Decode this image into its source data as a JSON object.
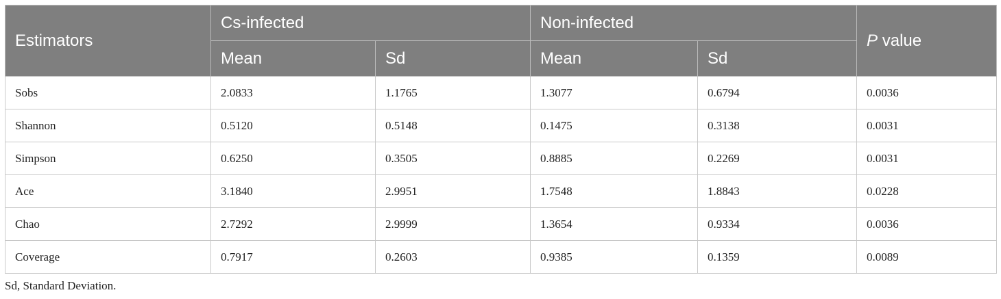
{
  "table": {
    "headers": {
      "estimators": "Estimators",
      "group1": "Cs-infected",
      "group2": "Non-infected",
      "p_italic": "P",
      "p_rest": " value",
      "mean": "Mean",
      "sd": "Sd"
    },
    "rows": [
      {
        "name": "Sobs",
        "cs_mean": "2.0833",
        "cs_sd": "1.1765",
        "non_mean": "1.3077",
        "non_sd": "0.6794",
        "p": "0.0036"
      },
      {
        "name": "Shannon",
        "cs_mean": "0.5120",
        "cs_sd": "0.5148",
        "non_mean": "0.1475",
        "non_sd": "0.3138",
        "p": "0.0031"
      },
      {
        "name": "Simpson",
        "cs_mean": "0.6250",
        "cs_sd": "0.3505",
        "non_mean": "0.8885",
        "non_sd": "0.2269",
        "p": "0.0031"
      },
      {
        "name": "Ace",
        "cs_mean": "3.1840",
        "cs_sd": "2.9951",
        "non_mean": "1.7548",
        "non_sd": "1.8843",
        "p": "0.0228"
      },
      {
        "name": "Chao",
        "cs_mean": "2.7292",
        "cs_sd": "2.9999",
        "non_mean": "1.3654",
        "non_sd": "0.9334",
        "p": "0.0036"
      },
      {
        "name": "Coverage",
        "cs_mean": "0.7917",
        "cs_sd": "0.2603",
        "non_mean": "0.9385",
        "non_sd": "0.1359",
        "p": "0.0089"
      }
    ]
  },
  "footnote": "Sd, Standard Deviation."
}
